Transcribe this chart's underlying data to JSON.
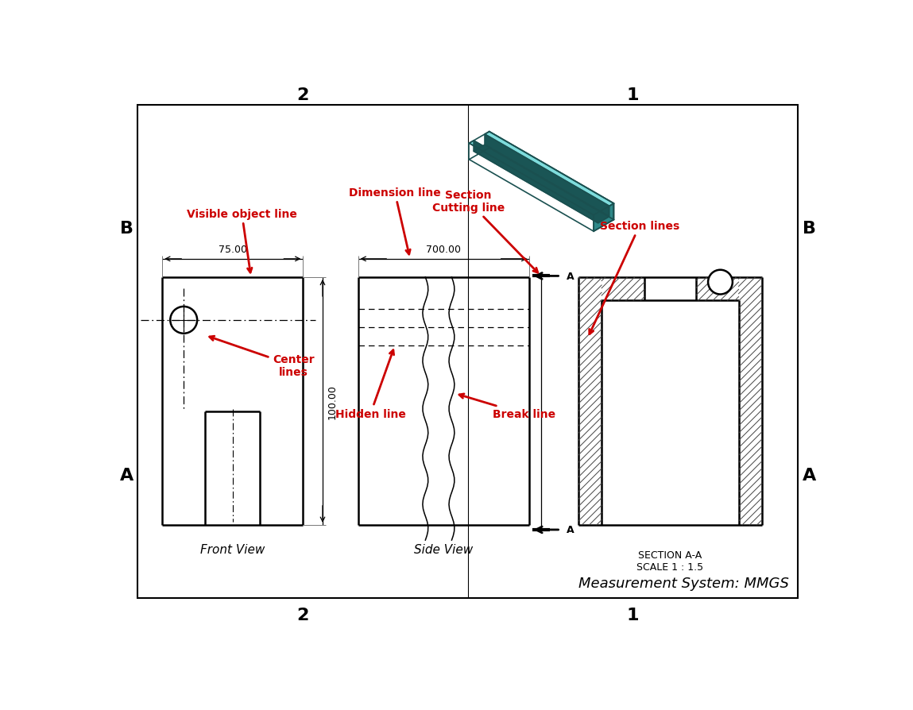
{
  "background_color": "#ffffff",
  "measurement_system": "Measurement System: MMGS",
  "section_label": "SECTION A-A\nSCALE 1 : 1.5",
  "front_view_label": "Front View",
  "side_view_label": "Side View",
  "grid_labels": {
    "top_left": "2",
    "top_right": "1",
    "bottom_left": "2",
    "bottom_right": "1",
    "left_top": "B",
    "left_bottom": "A",
    "right_top": "B",
    "right_bottom": "A"
  },
  "red_color": "#cc0000",
  "annotation_labels": {
    "visible_object_line": "Visible object line",
    "center_lines": "Center\nlines",
    "dimension_line": "Dimension line",
    "section_cutting_line": "Section\nCutting line",
    "hidden_line": "Hidden line",
    "break_line": "Break line",
    "section_lines": "Section lines"
  },
  "dim_75": "75.00",
  "dim_100": "100.00",
  "dim_700": "700.00"
}
